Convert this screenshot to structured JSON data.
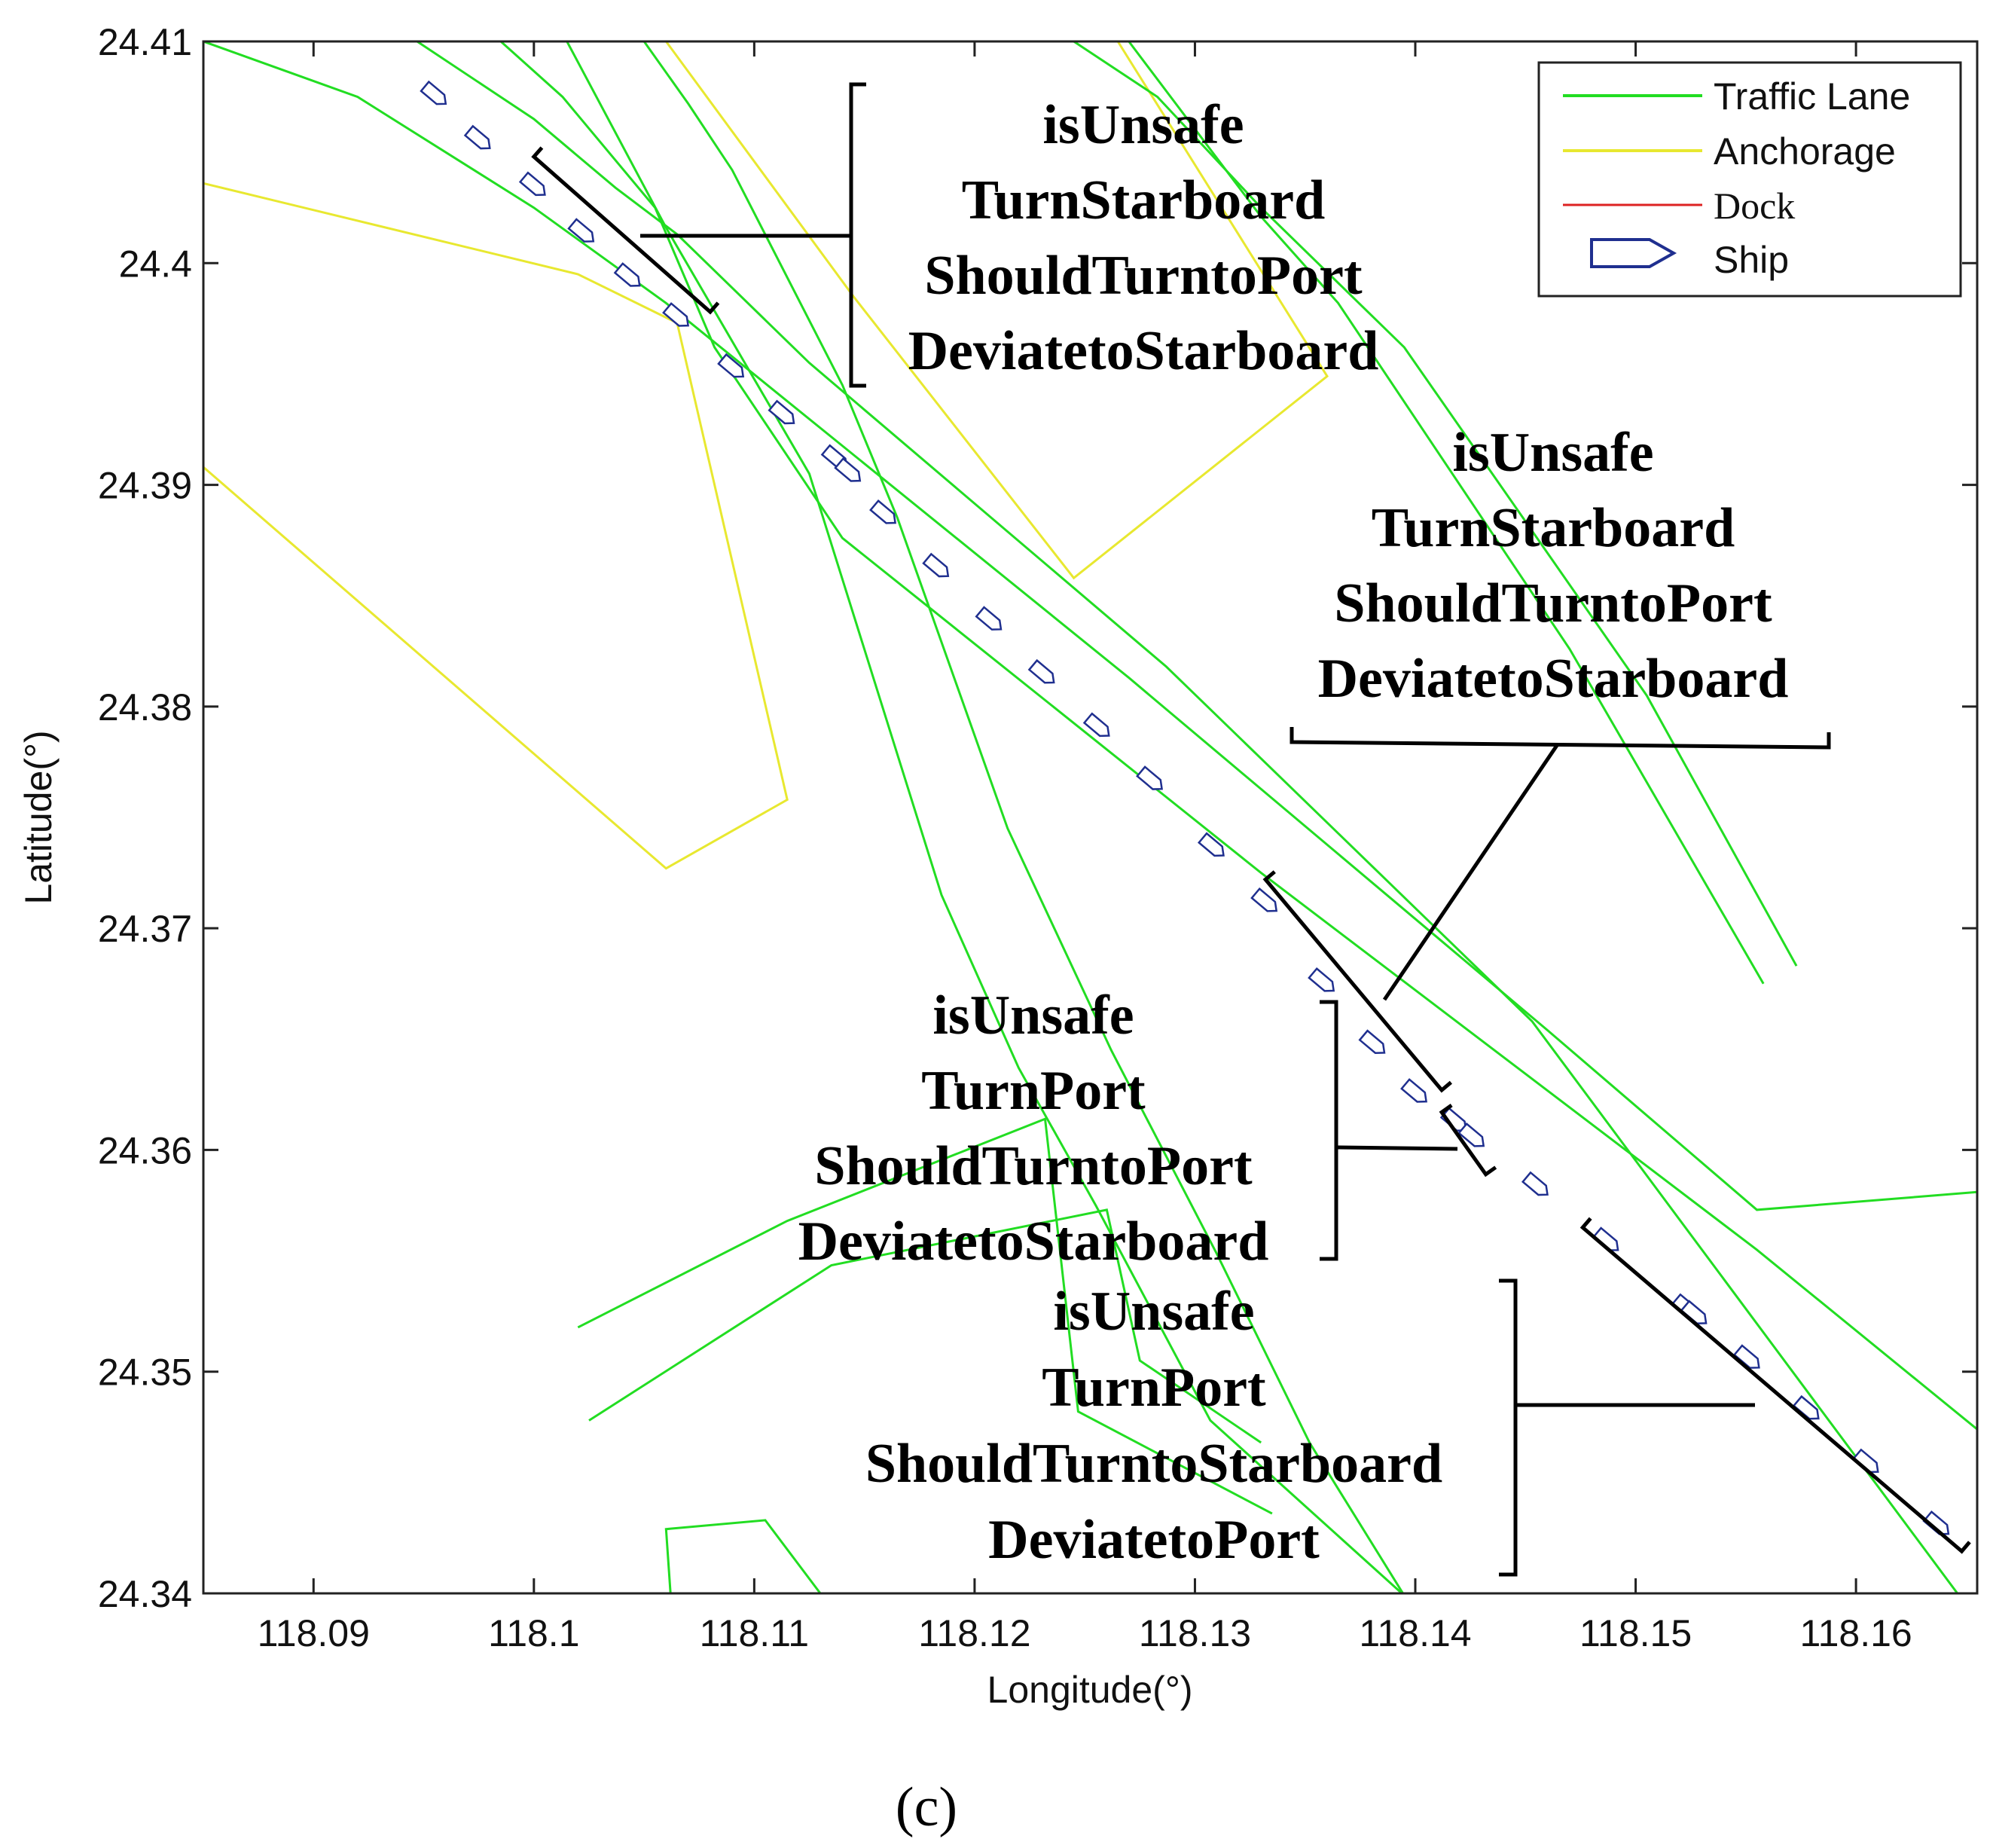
{
  "chart_data": {
    "type": "line",
    "title": "",
    "xlabel": "Longitude(°)",
    "ylabel": "Latitude(°)",
    "xlim": [
      118.085,
      118.1655
    ],
    "ylim": [
      24.34,
      24.41
    ],
    "xticks": [
      118.09,
      118.1,
      118.11,
      118.12,
      118.13,
      118.14,
      118.15,
      118.16
    ],
    "xtick_labels": [
      "118.09",
      "118.1",
      "118.11",
      "118.12",
      "118.13",
      "118.14",
      "118.15",
      "118.16"
    ],
    "yticks": [
      24.34,
      24.35,
      24.36,
      24.37,
      24.38,
      24.39,
      24.4,
      24.41
    ],
    "ytick_labels": [
      "24.34",
      "24.35",
      "24.36",
      "24.37",
      "24.38",
      "24.39",
      "24.4",
      "24.41"
    ],
    "grid": false,
    "legend_position": "top-right",
    "legend": [
      {
        "label": "Traffic Lane",
        "kind": "line",
        "color": "#22dd22"
      },
      {
        "label": "Anchorage",
        "kind": "line",
        "color": "#e8e830"
      },
      {
        "label": "Dock",
        "kind": "line",
        "color": "#dd2222"
      },
      {
        "label": "Ship",
        "kind": "ship",
        "color": "#1f2f8f"
      }
    ],
    "traffic_lanes": [
      [
        [
          118.085,
          24.41
        ],
        [
          118.092,
          24.4075
        ],
        [
          118.1,
          24.4025
        ],
        [
          118.106,
          24.3982
        ],
        [
          118.127,
          24.3813
        ],
        [
          118.146,
          24.3654
        ],
        [
          118.1555,
          24.3573
        ],
        [
          118.1655,
          24.3581
        ]
      ],
      [
        [
          118.0985,
          24.41
        ],
        [
          118.1013,
          24.4075
        ],
        [
          118.1055,
          24.4025
        ],
        [
          118.1082,
          24.3962
        ],
        [
          118.114,
          24.3876
        ],
        [
          118.133,
          24.3725
        ],
        [
          118.1555,
          24.3555
        ],
        [
          118.1655,
          24.3474
        ]
      ],
      [
        [
          118.1015,
          24.41
        ],
        [
          118.106,
          24.4016
        ],
        [
          118.1125,
          24.3905
        ],
        [
          118.1185,
          24.3715
        ],
        [
          118.122,
          24.3637
        ],
        [
          118.1255,
          24.3575
        ],
        [
          118.1307,
          24.3478
        ],
        [
          118.1395,
          24.3399
        ]
      ],
      [
        [
          118.0947,
          24.41
        ],
        [
          118.1,
          24.4065
        ],
        [
          118.1037,
          24.4034
        ],
        [
          118.1065,
          24.4013
        ],
        [
          118.1125,
          24.3955
        ],
        [
          118.1287,
          24.3818
        ],
        [
          118.1453,
          24.3658
        ],
        [
          118.1655,
          24.3388
        ]
      ],
      [
        [
          118.105,
          24.41
        ],
        [
          118.107,
          24.4072
        ],
        [
          118.109,
          24.4042
        ],
        [
          118.114,
          24.3945
        ],
        [
          118.1165,
          24.3885
        ],
        [
          118.1215,
          24.3745
        ],
        [
          118.1262,
          24.3645
        ],
        [
          118.131,
          24.3553
        ],
        [
          118.1352,
          24.3468
        ],
        [
          118.1395,
          24.3399
        ]
      ],
      [
        [
          118.1245,
          24.41
        ],
        [
          118.1283,
          24.4075
        ],
        [
          118.133,
          24.4025
        ],
        [
          118.1395,
          24.3962
        ],
        [
          118.1505,
          24.3805
        ],
        [
          118.1573,
          24.3683
        ]
      ],
      [
        [
          118.127,
          24.41
        ],
        [
          118.133,
          24.4021
        ],
        [
          118.1365,
          24.3982
        ],
        [
          118.147,
          24.3826
        ],
        [
          118.1558,
          24.3675
        ]
      ],
      [
        [
          118.102,
          24.352
        ],
        [
          118.1115,
          24.3568
        ],
        [
          118.1232,
          24.3614
        ],
        [
          118.1247,
          24.3482
        ],
        [
          118.1335,
          24.3436
        ]
      ],
      [
        [
          118.1025,
          24.3478
        ],
        [
          118.1135,
          24.3548
        ],
        [
          118.126,
          24.3573
        ],
        [
          118.1275,
          24.3505
        ],
        [
          118.133,
          24.3468
        ]
      ],
      [
        [
          118.1062,
          24.34
        ],
        [
          118.106,
          24.3429
        ],
        [
          118.1105,
          24.3433
        ],
        [
          118.113,
          24.34
        ]
      ]
    ],
    "anchorages": [
      [
        [
          118.085,
          24.4036
        ],
        [
          118.102,
          24.3995
        ],
        [
          118.1065,
          24.3973
        ],
        [
          118.1115,
          24.3758
        ],
        [
          118.106,
          24.3727
        ],
        [
          118.085,
          24.3908
        ]
      ],
      [
        [
          118.106,
          24.41
        ],
        [
          118.1145,
          24.3985
        ],
        [
          118.1245,
          24.3858
        ],
        [
          118.136,
          24.3949
        ],
        [
          118.1265,
          24.41
        ]
      ]
    ],
    "ship_track": [
      [
        118.0955,
        24.4076
      ],
      [
        118.0975,
        24.4056
      ],
      [
        118.1,
        24.4035
      ],
      [
        118.1022,
        24.4014
      ],
      [
        118.1043,
        24.3994
      ],
      [
        118.1065,
        24.3976
      ],
      [
        118.109,
        24.3953
      ],
      [
        118.1113,
        24.3932
      ],
      [
        118.1137,
        24.3912
      ],
      [
        118.1143,
        24.3906
      ],
      [
        118.1159,
        24.3887
      ],
      [
        118.1183,
        24.3863
      ],
      [
        118.1207,
        24.3839
      ],
      [
        118.1231,
        24.3815
      ],
      [
        118.1256,
        24.3791
      ],
      [
        118.128,
        24.3767
      ],
      [
        118.1308,
        24.3737
      ],
      [
        118.1332,
        24.3712
      ],
      [
        118.1358,
        24.3676
      ],
      [
        118.1381,
        24.3648
      ],
      [
        118.14,
        24.3626
      ],
      [
        118.1418,
        24.3613
      ],
      [
        118.1426,
        24.3606
      ],
      [
        118.1455,
        24.3584
      ],
      [
        118.1487,
        24.3559
      ],
      [
        118.1523,
        24.3529
      ],
      [
        118.1527,
        24.3526
      ],
      [
        118.1551,
        24.3506
      ],
      [
        118.1578,
        24.3483
      ],
      [
        118.1605,
        24.3459
      ],
      [
        118.1637,
        24.3431
      ]
    ],
    "annotations": [
      {
        "lines": [
          "isUnsafe",
          "TurnStarboard",
          "ShouldTurntoPort",
          "DeviatetoStarboard"
        ],
        "segment": [
          [
            118.1,
            24.4048
          ],
          [
            118.108,
            24.3978
          ]
        ]
      },
      {
        "lines": [
          "isUnsafe",
          "TurnStarboard",
          "ShouldTurntoPort",
          "DeviatetoStarboard"
        ],
        "segment": [
          [
            118.1332,
            24.3722
          ],
          [
            118.1412,
            24.3627
          ]
        ]
      },
      {
        "lines": [
          "isUnsafe",
          "TurnPort",
          "ShouldTurntoPort",
          "DeviatetoStarboard"
        ],
        "segment": [
          [
            118.1412,
            24.3617
          ],
          [
            118.1432,
            24.3589
          ]
        ]
      },
      {
        "lines": [
          "isUnsafe",
          "TurnPort",
          "ShouldTurntoStarboard",
          "DeviatetoPort"
        ],
        "segment": [
          [
            118.1476,
            24.3565
          ],
          [
            118.1648,
            24.3419
          ]
        ]
      }
    ]
  },
  "caption": "(c)"
}
